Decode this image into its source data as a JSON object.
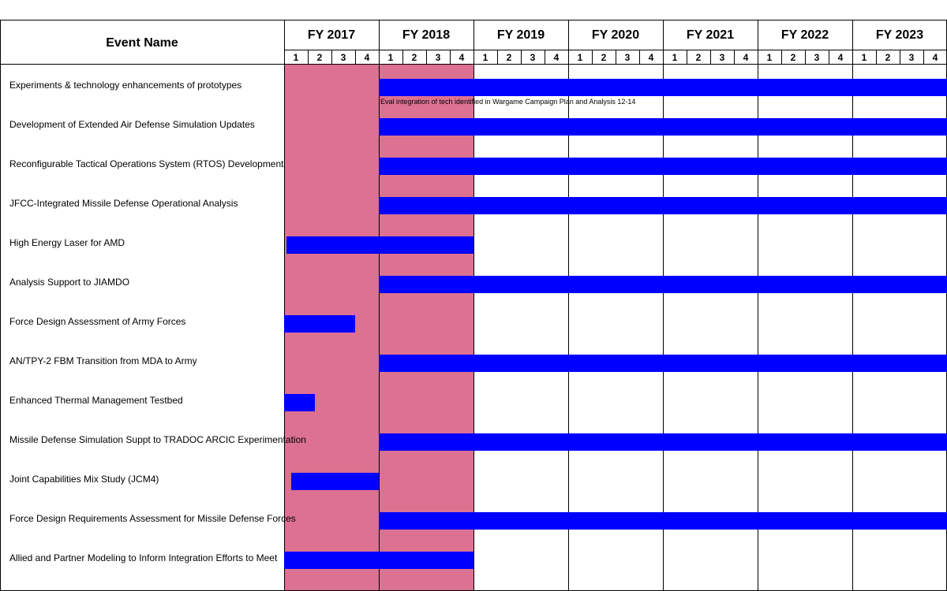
{
  "chart_data": {
    "type": "gantt",
    "header": "Event Name",
    "fiscal_years": [
      "FY 2017",
      "FY 2018",
      "FY 2019",
      "FY 2020",
      "FY 2021",
      "FY 2022",
      "FY 2023"
    ],
    "quarters": [
      "1",
      "2",
      "3",
      "4"
    ],
    "highlight": {
      "start_year_index": 0,
      "end_year_index": 1,
      "color": "#dc7192"
    },
    "bar_color": "#0000ff",
    "events": [
      {
        "name": "Experiments & technology enhancements of prototypes",
        "start": 4,
        "end": 28,
        "note": "Eval integration of tech identified in Wargame Campaign Plan and Analysis 12-14"
      },
      {
        "name": "Development of Extended Air Defense Simulation Updates",
        "start": 4,
        "end": 28
      },
      {
        "name": "Reconfigurable Tactical Operations System (RTOS) Development",
        "start": 4,
        "end": 28
      },
      {
        "name": "JFCC-Integrated Missile Defense Operational Analysis",
        "start": 4,
        "end": 28
      },
      {
        "name": "High Energy Laser for AMD",
        "start": 0.1,
        "end": 8
      },
      {
        "name": "Analysis Support to JIAMDO",
        "start": 4,
        "end": 28
      },
      {
        "name": "Force Design Assessment of Army Forces",
        "start": 0,
        "end": 3
      },
      {
        "name": "AN/TPY-2 FBM Transition from MDA to Army",
        "start": 4,
        "end": 28
      },
      {
        "name": "Enhanced Thermal Management Testbed",
        "start": 0,
        "end": 1.3
      },
      {
        "name": "Missile Defense Simulation Suppt to TRADOC ARCIC Experimentation",
        "start": 4,
        "end": 28
      },
      {
        "name": "Joint Capabilities Mix Study (JCM4)",
        "start": 0.3,
        "end": 4
      },
      {
        "name": "Force Design Requirements Assessment for Missile Defense Forces",
        "start": 4,
        "end": 28
      },
      {
        "name": "Allied and Partner Modeling to Inform Integration Efforts to Meet",
        "start": 0,
        "end": 8
      }
    ]
  }
}
